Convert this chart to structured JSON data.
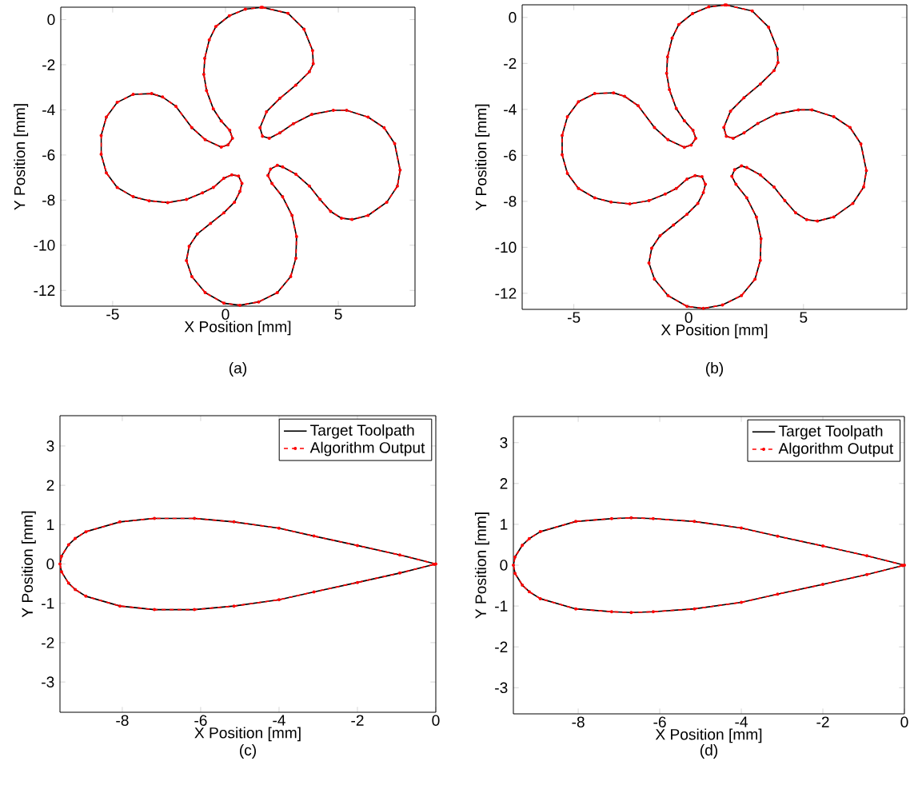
{
  "chart_data": [
    {
      "type": "line",
      "xlabel": "X Position [mm]",
      "ylabel": "Y Position [mm]",
      "annotations": [
        "(a)"
      ],
      "xlim": [
        -7.3,
        8.4
      ],
      "ylim": [
        -12.7,
        0.55
      ],
      "xticks": [
        -5,
        0,
        5
      ],
      "yticks": [
        -12,
        -10,
        -8,
        -6,
        -4,
        -2,
        0
      ],
      "legend": false,
      "series": [
        {
          "color": "#000000",
          "x": [
            1.64,
            2.77,
            3.48,
            3.86,
            3.89,
            3.72,
            3.12,
            2.41,
            1.82,
            1.53,
            1.64,
            1.94,
            2.41,
            3.01,
            3.83,
            4.78,
            5.37,
            6.32,
            7.03,
            7.5,
            7.74,
            7.62,
            7.15,
            6.32,
            5.61,
            5.14,
            4.66,
            4.19,
            3.72,
            3.12,
            2.53,
            2.3,
            2.0,
            1.88,
            2.06,
            2.53,
            2.95,
            3.15,
            3.12,
            2.89,
            2.3,
            1.47,
            0.64,
            -0.07,
            -0.9,
            -1.49,
            -1.73,
            -1.61,
            -1.25,
            -0.66,
            -0.07,
            0.4,
            0.64,
            0.73,
            0.58,
            0.28,
            -0.07,
            -0.54,
            -1.02,
            -1.73,
            -2.56,
            -3.38,
            -4.09,
            -4.8,
            -5.28,
            -5.51,
            -5.51,
            -5.28,
            -4.8,
            -4.09,
            -3.27,
            -2.79,
            -2.2,
            -1.49,
            -0.9,
            -0.19,
            0.11,
            0.31,
            0.19,
            -0.19,
            -0.54,
            -0.84,
            -0.96,
            -0.92,
            -0.72,
            -0.43,
            0.17,
            0.88,
            1.58
          ],
          "values": [
            0.54,
            0.28,
            -0.42,
            -1.37,
            -1.96,
            -2.31,
            -2.9,
            -3.49,
            -4.08,
            -4.79,
            -5.17,
            -5.26,
            -5.02,
            -4.61,
            -4.2,
            -4.02,
            -4.02,
            -4.32,
            -4.79,
            -5.5,
            -6.67,
            -7.38,
            -8.09,
            -8.68,
            -8.86,
            -8.8,
            -8.5,
            -7.97,
            -7.38,
            -6.85,
            -6.53,
            -6.46,
            -6.62,
            -6.91,
            -7.26,
            -7.85,
            -8.68,
            -9.62,
            -10.57,
            -11.39,
            -12.1,
            -12.51,
            -12.66,
            -12.57,
            -12.1,
            -11.39,
            -10.68,
            -10.04,
            -9.5,
            -9.03,
            -8.56,
            -8.09,
            -7.62,
            -7.26,
            -6.93,
            -6.88,
            -7.03,
            -7.44,
            -7.68,
            -7.97,
            -8.11,
            -8.03,
            -7.85,
            -7.44,
            -6.79,
            -5.97,
            -5.14,
            -4.32,
            -3.67,
            -3.31,
            -3.28,
            -3.43,
            -3.84,
            -4.79,
            -5.32,
            -5.65,
            -5.55,
            -5.26,
            -4.91,
            -4.49,
            -3.96,
            -3.14,
            -2.43,
            -1.72,
            -0.9,
            -0.31,
            0.17,
            0.46,
            0.54
          ]
        },
        {
          "color": "#ff0000",
          "line_style": "dashed",
          "marker": "circle",
          "x": [
            1.64,
            2.77,
            3.48,
            3.86,
            3.89,
            3.72,
            3.12,
            2.41,
            1.82,
            1.53,
            1.64,
            1.94,
            2.41,
            3.01,
            3.83,
            4.78,
            5.37,
            6.32,
            7.03,
            7.5,
            7.74,
            7.62,
            7.15,
            6.32,
            5.61,
            5.14,
            4.66,
            4.19,
            3.72,
            3.12,
            2.53,
            2.3,
            2.0,
            1.88,
            2.06,
            2.53,
            2.95,
            3.15,
            3.12,
            2.89,
            2.3,
            1.47,
            0.64,
            -0.07,
            -0.9,
            -1.49,
            -1.73,
            -1.61,
            -1.25,
            -0.66,
            -0.07,
            0.4,
            0.64,
            0.73,
            0.58,
            0.28,
            -0.07,
            -0.54,
            -1.02,
            -1.73,
            -2.56,
            -3.38,
            -4.09,
            -4.8,
            -5.28,
            -5.51,
            -5.51,
            -5.28,
            -4.8,
            -4.09,
            -3.27,
            -2.79,
            -2.2,
            -1.49,
            -0.9,
            -0.19,
            0.11,
            0.31,
            0.19,
            -0.19,
            -0.54,
            -0.84,
            -0.96,
            -0.92,
            -0.72,
            -0.43,
            0.17,
            0.88,
            1.58
          ],
          "values": [
            0.54,
            0.28,
            -0.42,
            -1.37,
            -1.96,
            -2.31,
            -2.9,
            -3.49,
            -4.08,
            -4.79,
            -5.17,
            -5.26,
            -5.02,
            -4.61,
            -4.2,
            -4.02,
            -4.02,
            -4.32,
            -4.79,
            -5.5,
            -6.67,
            -7.38,
            -8.09,
            -8.68,
            -8.86,
            -8.8,
            -8.5,
            -7.97,
            -7.38,
            -6.85,
            -6.53,
            -6.46,
            -6.62,
            -6.91,
            -7.26,
            -7.85,
            -8.68,
            -9.62,
            -10.57,
            -11.39,
            -12.1,
            -12.51,
            -12.66,
            -12.57,
            -12.1,
            -11.39,
            -10.68,
            -10.04,
            -9.5,
            -9.03,
            -8.56,
            -8.09,
            -7.62,
            -7.26,
            -6.93,
            -6.88,
            -7.03,
            -7.44,
            -7.68,
            -7.97,
            -8.11,
            -8.03,
            -7.85,
            -7.44,
            -6.79,
            -5.97,
            -5.14,
            -4.32,
            -3.67,
            -3.31,
            -3.28,
            -3.43,
            -3.84,
            -4.79,
            -5.32,
            -5.65,
            -5.55,
            -5.26,
            -4.91,
            -4.49,
            -3.96,
            -3.14,
            -2.43,
            -1.72,
            -0.9,
            -0.31,
            0.17,
            0.46,
            0.54
          ]
        }
      ]
    },
    {
      "type": "line",
      "xlabel": "X Position [mm]",
      "ylabel": "Y Position [mm]",
      "annotations": [
        "(b)"
      ],
      "xlim": [
        -7.25,
        9.5
      ],
      "ylim": [
        -12.7,
        0.55
      ],
      "xticks": [
        -5,
        0,
        5
      ],
      "yticks": [
        -12,
        -10,
        -8,
        -6,
        -4,
        -2,
        0
      ],
      "legend": false,
      "series": [
        {
          "color": "#000000",
          "x": [
            1.64,
            2.77,
            3.48,
            3.86,
            3.89,
            3.72,
            3.12,
            2.41,
            1.82,
            1.53,
            1.64,
            1.94,
            2.41,
            3.01,
            3.83,
            4.78,
            5.37,
            6.32,
            7.03,
            7.5,
            7.74,
            7.62,
            7.15,
            6.32,
            5.61,
            5.14,
            4.66,
            4.19,
            3.72,
            3.12,
            2.53,
            2.3,
            2.0,
            1.88,
            2.06,
            2.53,
            2.95,
            3.15,
            3.12,
            2.89,
            2.3,
            1.47,
            0.64,
            -0.07,
            -0.9,
            -1.49,
            -1.73,
            -1.61,
            -1.25,
            -0.66,
            -0.07,
            0.4,
            0.64,
            0.73,
            0.58,
            0.28,
            -0.07,
            -0.54,
            -1.02,
            -1.73,
            -2.56,
            -3.38,
            -4.09,
            -4.8,
            -5.28,
            -5.51,
            -5.51,
            -5.28,
            -4.8,
            -4.09,
            -3.27,
            -2.79,
            -2.2,
            -1.49,
            -0.9,
            -0.19,
            0.11,
            0.31,
            0.19,
            -0.19,
            -0.54,
            -0.84,
            -0.96,
            -0.92,
            -0.72,
            -0.43,
            0.17,
            0.88,
            1.58
          ],
          "values": [
            0.54,
            0.28,
            -0.42,
            -1.37,
            -1.96,
            -2.31,
            -2.9,
            -3.49,
            -4.08,
            -4.79,
            -5.17,
            -5.26,
            -5.02,
            -4.61,
            -4.2,
            -4.02,
            -4.02,
            -4.32,
            -4.79,
            -5.5,
            -6.67,
            -7.38,
            -8.09,
            -8.68,
            -8.86,
            -8.8,
            -8.5,
            -7.97,
            -7.38,
            -6.85,
            -6.53,
            -6.46,
            -6.62,
            -6.91,
            -7.26,
            -7.85,
            -8.68,
            -9.62,
            -10.57,
            -11.39,
            -12.1,
            -12.51,
            -12.66,
            -12.57,
            -12.1,
            -11.39,
            -10.68,
            -10.04,
            -9.5,
            -9.03,
            -8.56,
            -8.09,
            -7.62,
            -7.26,
            -6.93,
            -6.88,
            -7.03,
            -7.44,
            -7.68,
            -7.97,
            -8.11,
            -8.03,
            -7.85,
            -7.44,
            -6.79,
            -5.97,
            -5.14,
            -4.32,
            -3.67,
            -3.31,
            -3.28,
            -3.43,
            -3.84,
            -4.79,
            -5.32,
            -5.65,
            -5.55,
            -5.26,
            -4.91,
            -4.49,
            -3.96,
            -3.14,
            -2.43,
            -1.72,
            -0.9,
            -0.31,
            0.17,
            0.46,
            0.54
          ]
        },
        {
          "color": "#ff0000",
          "line_style": "dashed",
          "marker": "circle",
          "x": [
            1.64,
            2.77,
            3.48,
            3.86,
            3.89,
            3.72,
            3.12,
            2.41,
            1.82,
            1.53,
            1.64,
            1.94,
            2.41,
            3.01,
            3.83,
            4.78,
            5.37,
            6.32,
            7.03,
            7.5,
            7.74,
            7.62,
            7.15,
            6.32,
            5.61,
            5.14,
            4.66,
            4.19,
            3.72,
            3.12,
            2.53,
            2.3,
            2.0,
            1.88,
            2.06,
            2.53,
            2.95,
            3.15,
            3.12,
            2.89,
            2.3,
            1.47,
            0.64,
            -0.07,
            -0.9,
            -1.49,
            -1.73,
            -1.61,
            -1.25,
            -0.66,
            -0.07,
            0.4,
            0.64,
            0.73,
            0.58,
            0.28,
            -0.07,
            -0.54,
            -1.02,
            -1.73,
            -2.56,
            -3.38,
            -4.09,
            -4.8,
            -5.28,
            -5.51,
            -5.51,
            -5.28,
            -4.8,
            -4.09,
            -3.27,
            -2.79,
            -2.2,
            -1.49,
            -0.9,
            -0.19,
            0.11,
            0.31,
            0.19,
            -0.19,
            -0.54,
            -0.84,
            -0.96,
            -0.92,
            -0.72,
            -0.43,
            0.17,
            0.88,
            1.58
          ],
          "values": [
            0.54,
            0.28,
            -0.42,
            -1.37,
            -1.96,
            -2.31,
            -2.9,
            -3.49,
            -4.08,
            -4.79,
            -5.17,
            -5.26,
            -5.02,
            -4.61,
            -4.2,
            -4.02,
            -4.02,
            -4.32,
            -4.79,
            -5.5,
            -6.67,
            -7.38,
            -8.09,
            -8.68,
            -8.86,
            -8.8,
            -8.5,
            -7.97,
            -7.38,
            -6.85,
            -6.53,
            -6.46,
            -6.62,
            -6.91,
            -7.26,
            -7.85,
            -8.68,
            -9.62,
            -10.57,
            -11.39,
            -12.1,
            -12.51,
            -12.66,
            -12.57,
            -12.1,
            -11.39,
            -10.68,
            -10.04,
            -9.5,
            -9.03,
            -8.56,
            -8.09,
            -7.62,
            -7.26,
            -6.93,
            -6.88,
            -7.03,
            -7.44,
            -7.68,
            -7.97,
            -8.11,
            -8.03,
            -7.85,
            -7.44,
            -6.79,
            -5.97,
            -5.14,
            -4.32,
            -3.67,
            -3.31,
            -3.28,
            -3.43,
            -3.84,
            -4.79,
            -5.32,
            -5.65,
            -5.55,
            -5.26,
            -4.91,
            -4.49,
            -3.96,
            -3.14,
            -2.43,
            -1.72,
            -0.9,
            -0.31,
            0.17,
            0.46,
            0.54
          ]
        }
      ]
    },
    {
      "type": "line",
      "xlabel": "X Position [mm]",
      "ylabel": "Y Position [mm]",
      "annotations": [
        "(c)"
      ],
      "xlim": [
        -9.59,
        0
      ],
      "ylim": [
        -3.77,
        3.77
      ],
      "xticks": [
        -8,
        -6,
        -4,
        -2,
        0
      ],
      "yticks": [
        -3,
        -2,
        -1,
        0,
        1,
        2,
        3
      ],
      "legend": "top right",
      "series": [
        {
          "name": "Target Toolpath",
          "color": "#000000",
          "x": [
            0,
            -0.92,
            -2,
            -3.11,
            -4,
            -5.15,
            -6.16,
            -7.18,
            -8.06,
            -8.93,
            -9.2,
            -9.37,
            -9.55,
            -9.59,
            -9.55,
            -9.37,
            -9.2,
            -8.93,
            -8.06,
            -7.18,
            -6.16,
            -5.15,
            -4,
            -3.11,
            -2,
            -0.92,
            -0.04
          ],
          "values": [
            0,
            0.23,
            0.47,
            0.71,
            0.91,
            1.07,
            1.16,
            1.16,
            1.07,
            0.82,
            0.65,
            0.49,
            0.2,
            0,
            -0.2,
            -0.49,
            -0.65,
            -0.82,
            -1.07,
            -1.16,
            -1.16,
            -1.07,
            -0.91,
            -0.71,
            -0.47,
            -0.23,
            -0.01
          ]
        },
        {
          "name": "Algorithm Output",
          "color": "#ff0000",
          "line_style": "dashed",
          "marker": "circle",
          "x": [
            0,
            -0.92,
            -2,
            -3.11,
            -4,
            -5.15,
            -6.16,
            -7.18,
            -8.06,
            -8.93,
            -9.2,
            -9.37,
            -9.55,
            -9.59,
            -9.55,
            -9.37,
            -9.2,
            -8.93,
            -8.06,
            -7.18,
            -6.16,
            -5.15,
            -4,
            -3.11,
            -2,
            -0.92,
            -0.04
          ],
          "values": [
            0,
            0.23,
            0.47,
            0.71,
            0.91,
            1.07,
            1.16,
            1.16,
            1.07,
            0.82,
            0.65,
            0.49,
            0.2,
            0,
            -0.2,
            -0.49,
            -0.65,
            -0.82,
            -1.07,
            -1.16,
            -1.16,
            -1.07,
            -0.91,
            -0.71,
            -0.47,
            -0.23,
            -0.01
          ]
        }
      ]
    },
    {
      "type": "line",
      "xlabel": "X Position [mm]",
      "ylabel": "Y Position [mm]",
      "annotations": [
        "(d)"
      ],
      "xlim": [
        -9.59,
        0
      ],
      "ylim": [
        -3.64,
        3.64
      ],
      "xticks": [
        -8,
        -6,
        -4,
        -2,
        0
      ],
      "yticks": [
        -3,
        -2,
        -1,
        0,
        1,
        2,
        3
      ],
      "legend": "top right",
      "series": [
        {
          "name": "Target Toolpath",
          "color": "#000000",
          "x": [
            0,
            -0.92,
            -2,
            -3.11,
            -4,
            -5.15,
            -6.16,
            -6.7,
            -7.18,
            -8.06,
            -8.93,
            -9.2,
            -9.37,
            -9.55,
            -9.59,
            -9.55,
            -9.37,
            -9.2,
            -8.93,
            -8.06,
            -7.18,
            -6.7,
            -6.16,
            -5.15,
            -4,
            -3.11,
            -2,
            -0.92,
            -0.04
          ],
          "values": [
            0,
            0.23,
            0.47,
            0.71,
            0.91,
            1.07,
            1.14,
            1.16,
            1.14,
            1.07,
            0.82,
            0.65,
            0.49,
            0.2,
            0,
            -0.2,
            -0.49,
            -0.65,
            -0.82,
            -1.07,
            -1.14,
            -1.16,
            -1.14,
            -1.07,
            -0.91,
            -0.71,
            -0.47,
            -0.23,
            -0.01
          ]
        },
        {
          "name": "Algorithm Output",
          "color": "#ff0000",
          "line_style": "dashed",
          "marker": "circle",
          "x": [
            0,
            -0.92,
            -2,
            -3.11,
            -4,
            -5.15,
            -6.16,
            -6.7,
            -7.18,
            -8.06,
            -8.93,
            -9.2,
            -9.37,
            -9.55,
            -9.59,
            -9.55,
            -9.37,
            -9.2,
            -8.93,
            -8.06,
            -7.18,
            -6.7,
            -6.16,
            -5.15,
            -4,
            -3.11,
            -2,
            -0.92,
            -0.04
          ],
          "values": [
            0,
            0.23,
            0.47,
            0.71,
            0.91,
            1.07,
            1.14,
            1.16,
            1.14,
            1.07,
            0.82,
            0.65,
            0.49,
            0.2,
            0,
            -0.2,
            -0.49,
            -0.65,
            -0.82,
            -1.07,
            -1.14,
            -1.16,
            -1.14,
            -1.07,
            -0.91,
            -0.71,
            -0.47,
            -0.23,
            -0.01
          ]
        }
      ]
    }
  ]
}
